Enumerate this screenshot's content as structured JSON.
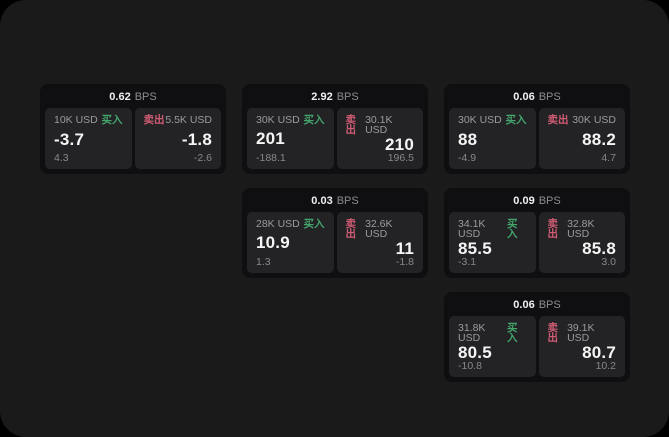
{
  "labels": {
    "bps_unit": "BPS",
    "buy": "买入",
    "sell": "卖出"
  },
  "colors": {
    "buy": "#43a46c",
    "sell": "#cf5c74",
    "window_bg": "#1a1a1b",
    "card_bg": "#0f0f11",
    "tile_bg": "#232325"
  },
  "cards": [
    {
      "row": 1,
      "col": 1,
      "bps": "0.62",
      "buy": {
        "amount": "10K USD",
        "value": "-3.7",
        "sub": "4.3"
      },
      "sell": {
        "amount": "5.5K USD",
        "value": "-1.8",
        "sub": "-2.6"
      }
    },
    {
      "row": 1,
      "col": 2,
      "bps": "2.92",
      "buy": {
        "amount": "30K USD",
        "value": "201",
        "sub": "-188.1"
      },
      "sell": {
        "amount": "30.1K USD",
        "value": "210",
        "sub": "196.5"
      }
    },
    {
      "row": 1,
      "col": 3,
      "bps": "0.06",
      "buy": {
        "amount": "30K USD",
        "value": "88",
        "sub": "-4.9"
      },
      "sell": {
        "amount": "30K USD",
        "value": "88.2",
        "sub": "4.7"
      }
    },
    {
      "row": 2,
      "col": 2,
      "bps": "0.03",
      "buy": {
        "amount": "28K USD",
        "value": "10.9",
        "sub": "1.3"
      },
      "sell": {
        "amount": "32.6K USD",
        "value": "11",
        "sub": "-1.8"
      }
    },
    {
      "row": 2,
      "col": 3,
      "bps": "0.09",
      "buy": {
        "amount": "34.1K USD",
        "value": "85.5",
        "sub": "-3.1"
      },
      "sell": {
        "amount": "32.8K USD",
        "value": "85.8",
        "sub": "3.0"
      }
    },
    {
      "row": 3,
      "col": 3,
      "bps": "0.06",
      "buy": {
        "amount": "31.8K USD",
        "value": "80.5",
        "sub": "-10.8"
      },
      "sell": {
        "amount": "39.1K USD",
        "value": "80.7",
        "sub": "10.2"
      }
    }
  ]
}
